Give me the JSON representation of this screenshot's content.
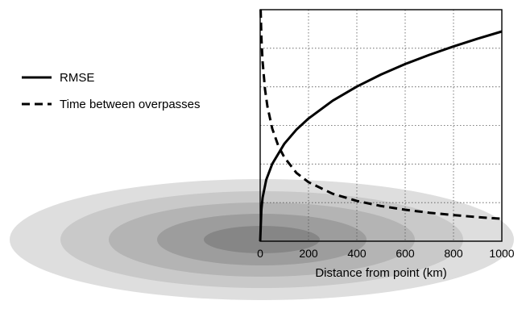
{
  "chart_data": {
    "type": "line",
    "title": "",
    "xlabel": "Distance from point (km)",
    "ylabel": "",
    "xlim": [
      0,
      1000
    ],
    "ylim": [
      0,
      1
    ],
    "x_ticks": [
      "0",
      "200",
      "400",
      "600",
      "800",
      "1000"
    ],
    "grid": true,
    "legend_position": "left",
    "background_rings": {
      "count": 5,
      "colors": [
        "#dedede",
        "#c9c9c9",
        "#b4b4b4",
        "#9d9d9d",
        "#868686"
      ]
    },
    "series": [
      {
        "name": "RMSE",
        "style": "solid",
        "color": "#000000",
        "x": [
          0,
          5,
          10,
          25,
          50,
          100,
          150,
          200,
          300,
          400,
          500,
          600,
          700,
          800,
          900,
          1000
        ],
        "y": [
          0.0,
          0.136,
          0.188,
          0.265,
          0.334,
          0.421,
          0.482,
          0.53,
          0.607,
          0.668,
          0.72,
          0.765,
          0.805,
          0.841,
          0.875,
          0.906
        ]
      },
      {
        "name": "Time between overpasses",
        "style": "dashed",
        "color": "#000000",
        "x": [
          2,
          5,
          10,
          20,
          30,
          50,
          75,
          100,
          150,
          200,
          300,
          400,
          500,
          600,
          700,
          800,
          900,
          1000
        ],
        "y": [
          1.0,
          0.88,
          0.776,
          0.656,
          0.582,
          0.486,
          0.412,
          0.362,
          0.295,
          0.255,
          0.205,
          0.174,
          0.152,
          0.136,
          0.123,
          0.113,
          0.104,
          0.097
        ]
      }
    ]
  }
}
